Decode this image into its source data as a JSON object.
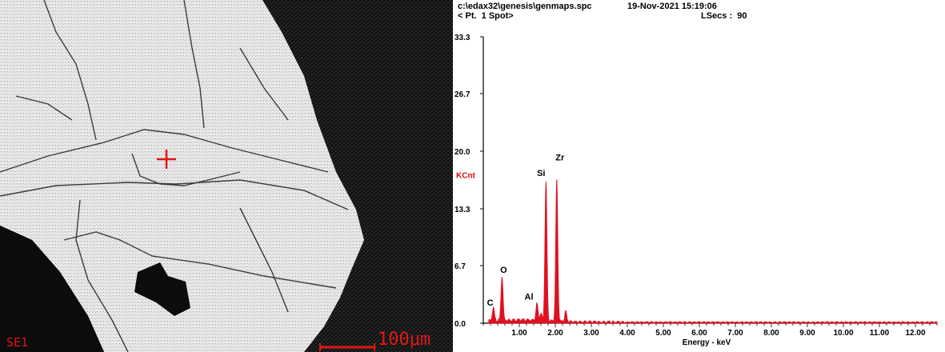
{
  "sem_image": {
    "detector_label": "SE1",
    "scale_bar_label": "100μm",
    "marker_color": "#e01818"
  },
  "spectrum": {
    "file_path": "c:\\edax32\\genesis\\genmaps.spc",
    "date_time": "19-Nov-2021 15:19:06",
    "point_label": "< Pt.  1 Spot>",
    "lsecs_label": "LSecs :  90"
  },
  "chart_data": {
    "type": "line",
    "xlabel": "Energy - keV",
    "ylabel": "KCnt",
    "ylim": [
      0,
      33.3
    ],
    "xlim": [
      0,
      12.6
    ],
    "y_ticks": [
      "0.0",
      "6.7",
      "13.3",
      "20.0",
      "26.7",
      "33.3"
    ],
    "x_ticks": [
      "1.00",
      "2.00",
      "3.00",
      "4.00",
      "5.00",
      "6.00",
      "7.00",
      "8.00",
      "9.00",
      "10.00",
      "11.00",
      "12.00"
    ],
    "x_tick_values": [
      1,
      2,
      3,
      4,
      5,
      6,
      7,
      8,
      9,
      10,
      11,
      12
    ],
    "series_color": "#e01020",
    "peaks": [
      {
        "label": "C",
        "energy": 0.28,
        "kcnt": 1.5
      },
      {
        "label": "O",
        "energy": 0.52,
        "kcnt": 5.1
      },
      {
        "label": "Al",
        "energy": 1.49,
        "kcnt": 2.0
      },
      {
        "label": "Si",
        "energy": 1.74,
        "kcnt": 16.2
      },
      {
        "label": "Zr",
        "energy": 2.04,
        "kcnt": 16.5
      }
    ],
    "minor_peaks": [
      {
        "energy": 1.6,
        "kcnt": 0.9
      },
      {
        "energy": 2.29,
        "kcnt": 1.2
      }
    ]
  }
}
